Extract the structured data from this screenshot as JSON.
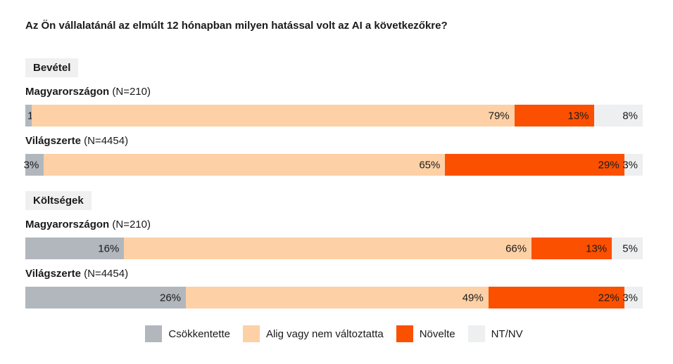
{
  "chart_data": {
    "type": "bar",
    "variant": "horizontal-stacked-percent",
    "title": "Az Ön vállalatánál az elmúlt 12 hónapban milyen hatással volt az AI a következőkre?",
    "unit": "%",
    "legend_position": "bottom-center",
    "legend": [
      {
        "label": "Csökkentette",
        "color": "#B1B7BD"
      },
      {
        "label": "Alig vagy nem változtatta",
        "color": "#FDD0A5"
      },
      {
        "label": "Növelte",
        "color": "#FB5000"
      },
      {
        "label": "NT/NV",
        "color": "#EEEFF0"
      }
    ],
    "sections": [
      {
        "title": "Bevétel",
        "rows": [
          {
            "label": "Magyarországon",
            "sample": "(N=210)",
            "values": [
              1,
              79,
              13,
              8
            ]
          },
          {
            "label": "Világszerte",
            "sample": "(N=4454)",
            "values": [
              3,
              65,
              29,
              3
            ]
          }
        ]
      },
      {
        "title": "Költségek",
        "rows": [
          {
            "label": "Magyarországon",
            "sample": "(N=210)",
            "values": [
              16,
              66,
              13,
              5
            ]
          },
          {
            "label": "Világszerte",
            "sample": "(N=4454)",
            "values": [
              26,
              49,
              22,
              3
            ]
          }
        ]
      }
    ],
    "styles": {
      "background": "#FFFFFF",
      "section_badge_bg": "#F0F0F0",
      "text_color": "#1A1A1A"
    }
  }
}
